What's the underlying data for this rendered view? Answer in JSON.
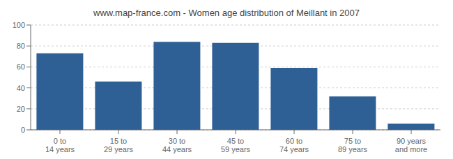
{
  "chart_data": {
    "type": "bar",
    "title": "www.map-france.com - Women age distribution of Meillant in 2007",
    "categories": [
      "0 to 14 years",
      "15 to 29 years",
      "30 to 44 years",
      "45 to 59 years",
      "60 to 74 years",
      "75 to 89 years",
      "90 years and more"
    ],
    "values": [
      73,
      46,
      84,
      83,
      59,
      32,
      6
    ],
    "color": "#2E6095",
    "ylim": [
      0,
      100
    ],
    "yticks": [
      0,
      20,
      40,
      60,
      80,
      100
    ],
    "grid": true
  }
}
